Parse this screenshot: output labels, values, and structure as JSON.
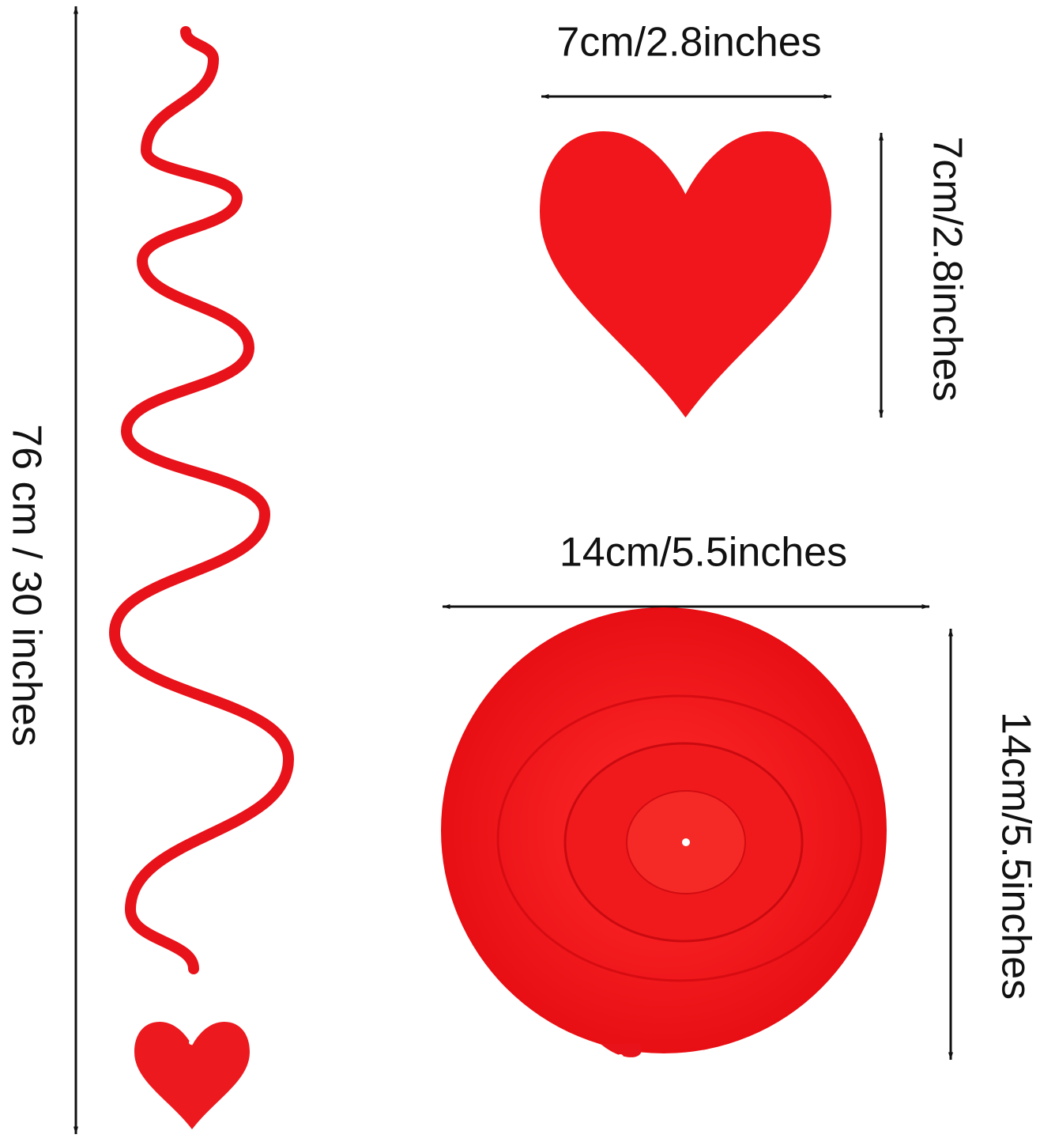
{
  "labels": {
    "swirl_length": "76 cm / 30 inches",
    "heart_width": "7cm/2.8inches",
    "heart_height": "7cm/2.8inches",
    "spiral_width": "14cm/5.5inches",
    "spiral_height": "14cm/5.5inches"
  }
}
